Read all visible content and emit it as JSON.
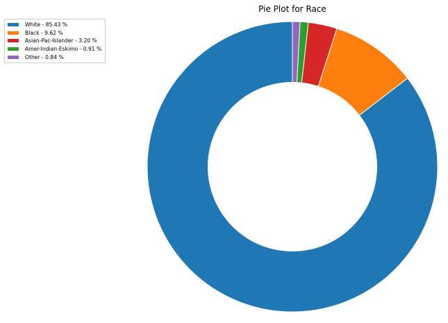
{
  "chart_data": {
    "type": "pie",
    "variant": "donut",
    "title": "Pie Plot for Race",
    "categories": [
      "White",
      "Black",
      "Asian-Pac-Islander",
      "Amer-Indian-Eskimo",
      "Other"
    ],
    "values": [
      85.43,
      9.62,
      3.2,
      0.91,
      0.84
    ],
    "unit": "%",
    "colors": [
      "#1f77b4",
      "#ff7f0e",
      "#d62728",
      "#2ca02c",
      "#9467bd"
    ],
    "legend_labels": [
      "White - 85.43 %",
      "Black - 9.62 %",
      "Asian-Pac-Islander - 3.20 %",
      "Amer-Indian-Eskimo - 0.91 %",
      "Other - 0.84 %"
    ],
    "legend_position": "top-left",
    "start_angle_deg": 90,
    "direction": "counterclockwise"
  }
}
